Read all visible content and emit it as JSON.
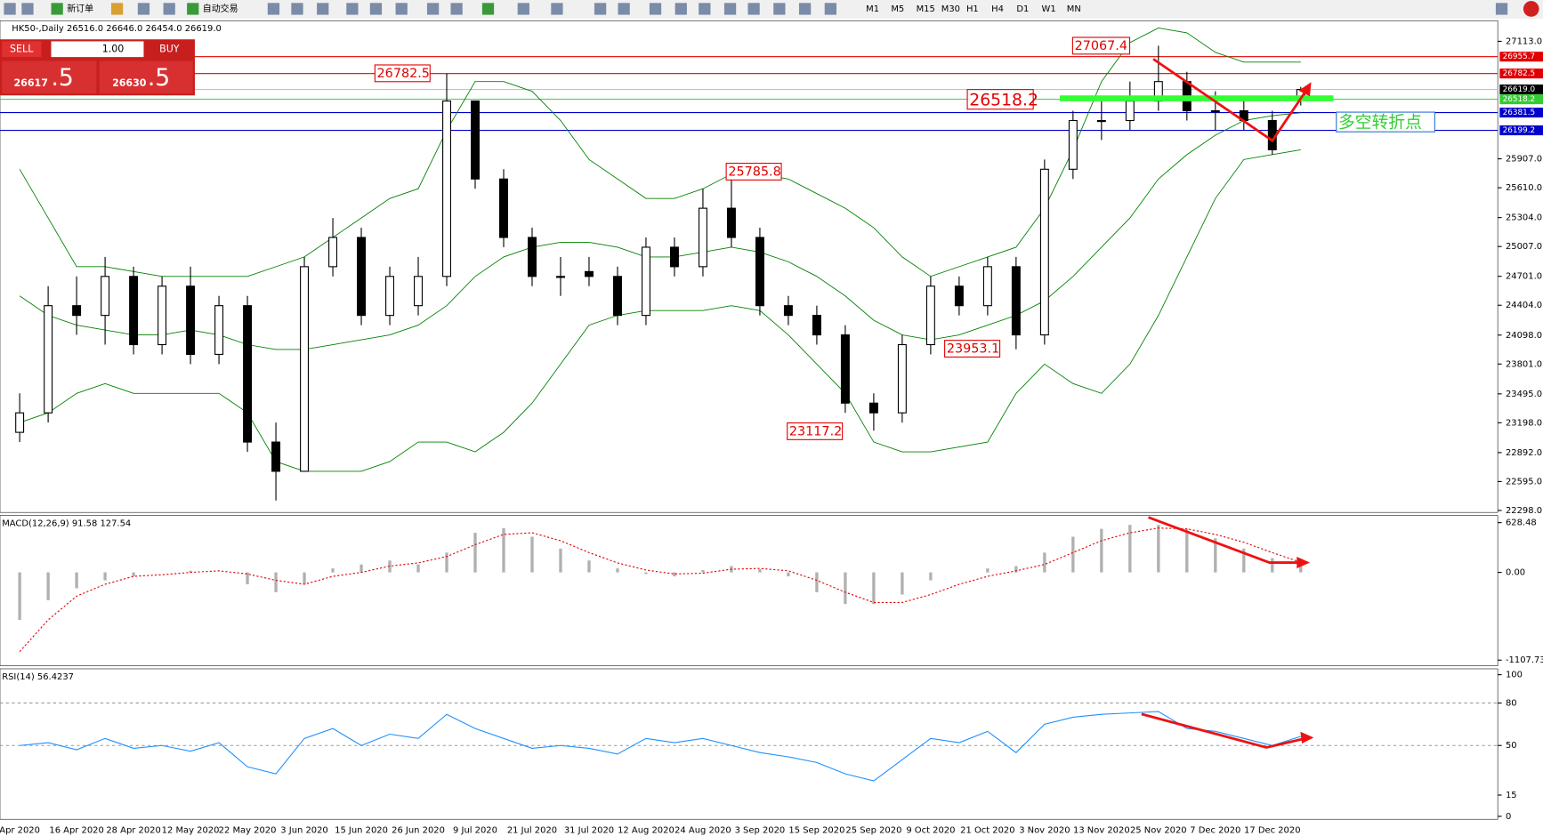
{
  "toolbar": {
    "buttons": [
      "新订单",
      "自动交易"
    ],
    "timeframes": [
      "M1",
      "M5",
      "M15",
      "M30",
      "H1",
      "H4",
      "D1",
      "W1",
      "MN"
    ]
  },
  "trade_panel": {
    "sell": "SELL",
    "buy": "BUY",
    "lot": "1.00",
    "sell_price": "26617",
    "sell_pip": ".5",
    "buy_price": "26630",
    "buy_pip": ".5"
  },
  "chart_data": {
    "type": "candlestick",
    "header": "HK50-,Daily  26516.0 26646.0 26454.0 26619.0",
    "categories": [
      "Apr 2020",
      null,
      "16 Apr 2020",
      null,
      "28 Apr 2020",
      null,
      "12 May 2020",
      null,
      "22 May 2020",
      null,
      "3 Jun 2020",
      null,
      "15 Jun 2020",
      null,
      "26 Jun 2020",
      null,
      "9 Jul 2020",
      null,
      "21 Jul 2020",
      null,
      "31 Jul 2020",
      null,
      "12 Aug 2020",
      null,
      "24 Aug 2020",
      null,
      "3 Sep 2020",
      null,
      "15 Sep 2020",
      null,
      "25 Sep 2020",
      null,
      "9 Oct 2020",
      null,
      "21 Oct 2020",
      null,
      "3 Nov 2020",
      null,
      "13 Nov 2020",
      null,
      "25 Nov 2020",
      null,
      "7 Dec 2020",
      null,
      "17 Dec 2020",
      null
    ],
    "open": [
      23100,
      23300,
      24400,
      24300,
      24700,
      24000,
      24600,
      23900,
      24400,
      23000,
      22700,
      24800,
      25100,
      24300,
      24400,
      24700,
      26500,
      25700,
      25100,
      24700,
      24750,
      24700,
      24300,
      25000,
      24800,
      25400,
      25100,
      24400,
      24300,
      24100,
      23400,
      23300,
      24000,
      24600,
      24400,
      24800,
      24100,
      25800,
      26300,
      26300,
      26500,
      26700,
      26400,
      26400,
      26300,
      26516
    ],
    "high": [
      23500,
      24600,
      24700,
      24900,
      24800,
      24700,
      24800,
      24500,
      24500,
      23200,
      24900,
      25300,
      25200,
      24800,
      24900,
      26782.5,
      26500,
      25800,
      25200,
      24900,
      24900,
      24800,
      25100,
      25100,
      25600,
      25785.8,
      25200,
      24500,
      24400,
      24200,
      23500,
      24100,
      24700,
      24700,
      24900,
      24900,
      25900,
      26400,
      26500,
      26700,
      27067.4,
      26800,
      26600,
      26500,
      26400,
      26646
    ],
    "low": [
      23000,
      23200,
      24100,
      24000,
      23900,
      23900,
      23800,
      23800,
      22900,
      22400,
      22700,
      24700,
      24200,
      24200,
      24300,
      24600,
      25600,
      25000,
      24600,
      24500,
      24600,
      24200,
      24200,
      24700,
      24700,
      25000,
      24300,
      24200,
      24000,
      23300,
      23117.2,
      23200,
      23900,
      24300,
      24300,
      23953.1,
      24000,
      25700,
      26100,
      26200,
      26400,
      26300,
      26200,
      26200,
      25950,
      26454
    ],
    "close": [
      23300,
      24400,
      24300,
      24700,
      24000,
      24600,
      23900,
      24400,
      23000,
      22700,
      24800,
      25100,
      24300,
      24700,
      24700,
      26500,
      25700,
      25100,
      24700,
      24700,
      24700,
      24300,
      25000,
      24800,
      25400,
      25100,
      24400,
      24300,
      24100,
      23400,
      23300,
      24000,
      24600,
      24400,
      24800,
      24100,
      25800,
      26300,
      26300,
      26500,
      26700,
      26400,
      26400,
      26300,
      26000,
      26619
    ],
    "bands": [
      {
        "name": "upper",
        "color": "#008000",
        "values": [
          25800,
          25300,
          24800,
          24800,
          24750,
          24700,
          24700,
          24700,
          24700,
          24800,
          24900,
          25100,
          25300,
          25500,
          25600,
          26200,
          26700,
          26700,
          26600,
          26300,
          25900,
          25700,
          25500,
          25500,
          25600,
          25750,
          25750,
          25700,
          25550,
          25400,
          25200,
          24900,
          24700,
          24800,
          24900,
          25000,
          25400,
          26000,
          26700,
          27100,
          27250,
          27200,
          27000,
          26900,
          26900,
          26900
        ]
      },
      {
        "name": "middle",
        "color": "#008000",
        "values": [
          24500,
          24300,
          24200,
          24150,
          24100,
          24100,
          24150,
          24100,
          24000,
          23950,
          23950,
          24000,
          24050,
          24100,
          24200,
          24400,
          24700,
          24900,
          25000,
          25050,
          25050,
          25000,
          24900,
          24900,
          24950,
          25000,
          24950,
          24850,
          24700,
          24500,
          24250,
          24100,
          24050,
          24100,
          24200,
          24300,
          24450,
          24700,
          25000,
          25300,
          25700,
          25950,
          26150,
          26300,
          26350,
          26380
        ]
      },
      {
        "name": "lower",
        "color": "#008000",
        "values": [
          23200,
          23300,
          23500,
          23600,
          23500,
          23500,
          23500,
          23500,
          23300,
          22800,
          22700,
          22700,
          22700,
          22800,
          23000,
          23000,
          22900,
          23100,
          23400,
          23800,
          24200,
          24300,
          24350,
          24350,
          24350,
          24400,
          24350,
          24100,
          23800,
          23500,
          23000,
          22900,
          22900,
          22950,
          23000,
          23500,
          23800,
          23600,
          23500,
          23800,
          24300,
          24900,
          25500,
          25900,
          25950,
          26000
        ]
      }
    ],
    "ylim": [
      22278,
      27325
    ],
    "yticks": [
      {
        "value": 27113,
        "label": "27113.0"
      },
      {
        "value": 25907,
        "label": "25907.0"
      },
      {
        "value": 25610,
        "label": "25610.0"
      },
      {
        "value": 25304,
        "label": "25304.0"
      },
      {
        "value": 25007,
        "label": "25007.0"
      },
      {
        "value": 24701,
        "label": "24701.0"
      },
      {
        "value": 24404,
        "label": "24404.0"
      },
      {
        "value": 24098,
        "label": "24098.0"
      },
      {
        "value": 23801,
        "label": "23801.0"
      },
      {
        "value": 23495,
        "label": "23495.0"
      },
      {
        "value": 23198,
        "label": "23198.0"
      },
      {
        "value": 22892,
        "label": "22892.0"
      },
      {
        "value": 22595,
        "label": "22595.0"
      },
      {
        "value": 22298,
        "label": "22298.0"
      }
    ],
    "levels": [
      {
        "value": 26955.7,
        "label": "26955.7",
        "color": "#e00000"
      },
      {
        "value": 26782.5,
        "label": "26782.5",
        "color": "#e00000"
      },
      {
        "value": 26619,
        "label": "26619.0",
        "color": "#000000"
      },
      {
        "value": 26518.2,
        "label": "26518.2",
        "color": "#33cc33"
      },
      {
        "value": 26381.5,
        "label": "26381.5",
        "color": "#0000cc"
      },
      {
        "value": 26199.2,
        "label": "26199.2",
        "color": "#0000cc"
      }
    ],
    "annotations": [
      "27067.4",
      "26782.5",
      "26518.2",
      "25785.8",
      "23953.1",
      "23117.2",
      "多空转折点"
    ],
    "macd": {
      "label": "MACD(12,26,9) 91.58 127.54",
      "histogram": [
        -600,
        -350,
        -200,
        -100,
        -50,
        0,
        20,
        0,
        -150,
        -250,
        -150,
        50,
        100,
        150,
        100,
        250,
        500,
        560,
        450,
        300,
        150,
        50,
        -20,
        -50,
        30,
        80,
        40,
        -50,
        -250,
        -400,
        -400,
        -280,
        -100,
        0,
        50,
        80,
        250,
        450,
        550,
        600,
        600,
        550,
        430,
        300,
        180,
        91.58
      ],
      "signal": [
        -1000,
        -600,
        -300,
        -150,
        -50,
        -30,
        0,
        20,
        -20,
        -100,
        -150,
        -50,
        0,
        80,
        120,
        200,
        350,
        480,
        500,
        400,
        250,
        120,
        30,
        -20,
        -10,
        40,
        50,
        20,
        -100,
        -250,
        -380,
        -380,
        -280,
        -150,
        -50,
        20,
        100,
        250,
        400,
        500,
        560,
        550,
        480,
        380,
        250,
        127.54
      ],
      "signal_color": "#e00000",
      "hist_color": "#b0b0b0",
      "ylim": [
        -1180,
        720
      ],
      "yticks": [
        {
          "value": 628.48,
          "label": "628.48"
        },
        {
          "value": 0,
          "label": "0.00"
        },
        {
          "value": -1107.73,
          "label": "-1107.73"
        }
      ]
    },
    "rsi": {
      "label": "RSI(14) 56.4237",
      "color": "#1e90ff",
      "values": [
        50,
        52,
        47,
        55,
        48,
        50,
        46,
        52,
        35,
        30,
        55,
        62,
        50,
        58,
        55,
        72,
        62,
        55,
        48,
        50,
        48,
        44,
        55,
        52,
        55,
        50,
        45,
        42,
        38,
        30,
        25,
        40,
        55,
        52,
        60,
        45,
        65,
        70,
        72,
        73,
        74,
        62,
        60,
        55,
        50,
        56.4237
      ],
      "ylim": [
        0,
        100
      ],
      "yticks": [
        100,
        80,
        50,
        15,
        0
      ],
      "levels": [
        80,
        50
      ]
    }
  }
}
